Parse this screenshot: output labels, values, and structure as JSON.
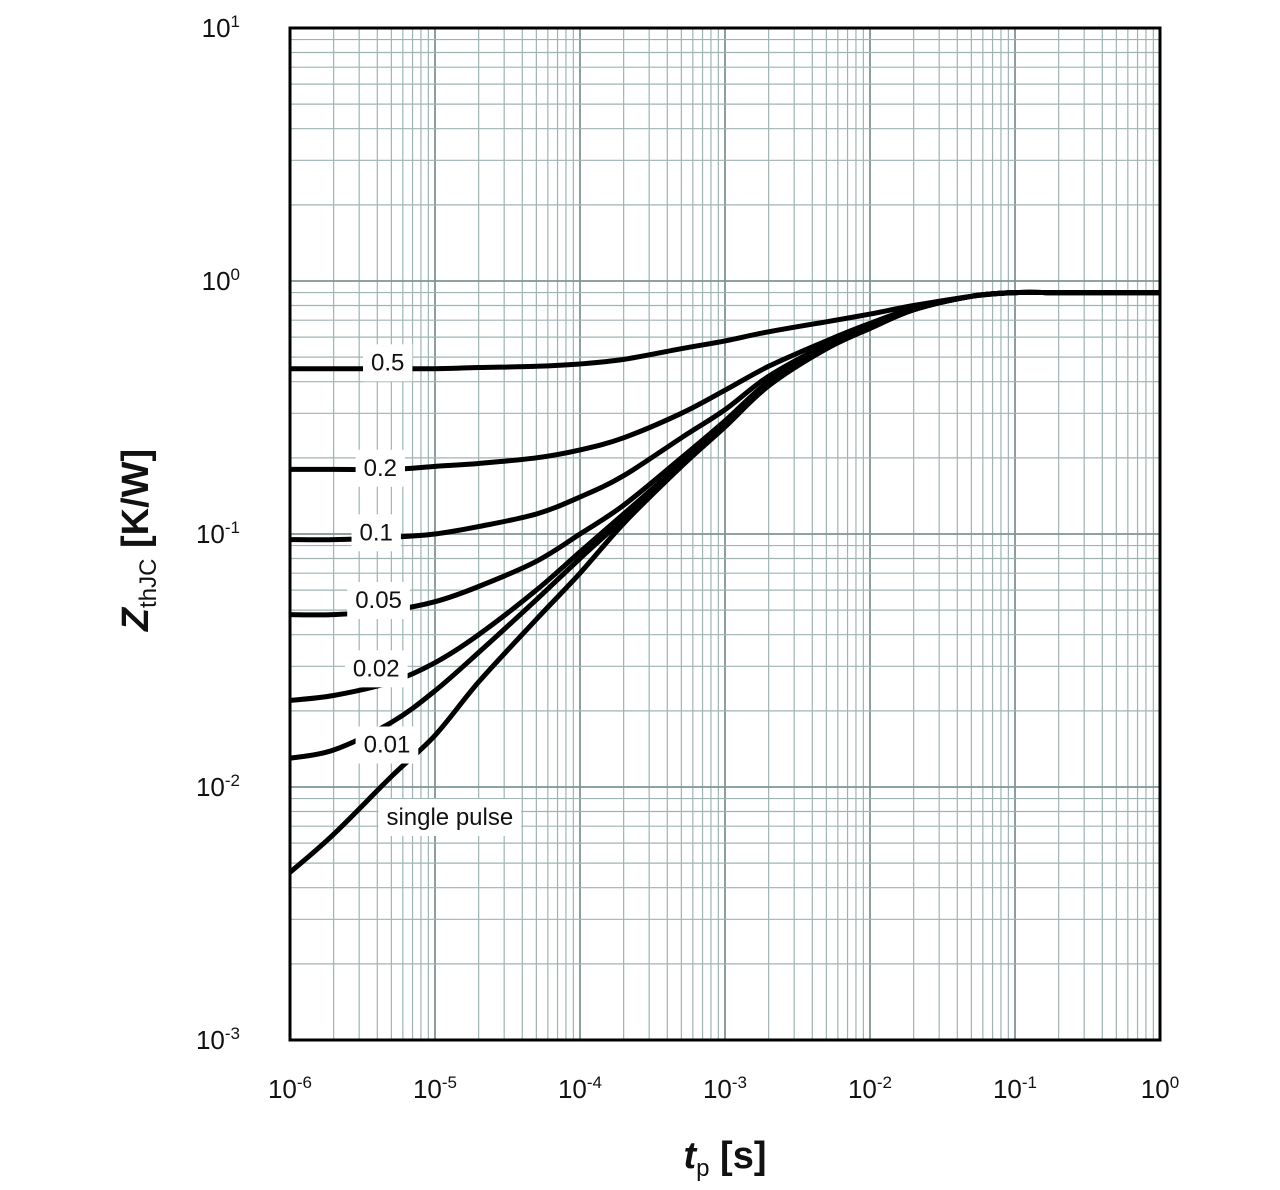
{
  "chart_data": {
    "type": "line",
    "title": "",
    "x_scale": "log",
    "y_scale": "log",
    "xlim": [
      1e-06,
      1
    ],
    "ylim": [
      0.001,
      10
    ],
    "grid": true,
    "xlabel": {
      "main": "t",
      "sub": "p",
      "unit": " [s]"
    },
    "ylabel": {
      "main": "Z",
      "sub": "thJC",
      "unit": " [K/W]"
    },
    "x_ticks": [
      {
        "value": 1e-06,
        "base": "10",
        "exp": "-6"
      },
      {
        "value": 1e-05,
        "base": "10",
        "exp": "-5"
      },
      {
        "value": 0.0001,
        "base": "10",
        "exp": "-4"
      },
      {
        "value": 0.001,
        "base": "10",
        "exp": "-3"
      },
      {
        "value": 0.01,
        "base": "10",
        "exp": "-2"
      },
      {
        "value": 0.1,
        "base": "10",
        "exp": "-1"
      },
      {
        "value": 1,
        "base": "10",
        "exp": "0"
      }
    ],
    "y_ticks": [
      {
        "value": 10,
        "base": "10",
        "exp": "1"
      },
      {
        "value": 1,
        "base": "10",
        "exp": "0"
      },
      {
        "value": 0.1,
        "base": "10",
        "exp": "-1"
      },
      {
        "value": 0.01,
        "base": "10",
        "exp": "-2"
      },
      {
        "value": 0.001,
        "base": "10",
        "exp": "-3"
      }
    ],
    "x": [
      1e-06,
      2e-06,
      5e-06,
      1e-05,
      2e-05,
      5e-05,
      0.0001,
      0.0002,
      0.0005,
      0.001,
      0.002,
      0.005,
      0.01,
      0.02,
      0.05,
      0.1,
      0.2,
      0.5,
      1
    ],
    "series": [
      {
        "name": "0.5",
        "label_x": 1.8e-06,
        "label_y": 0.47,
        "values": [
          0.45,
          0.45,
          0.45,
          0.45,
          0.455,
          0.46,
          0.47,
          0.49,
          0.54,
          0.58,
          0.63,
          0.69,
          0.74,
          0.8,
          0.87,
          0.9,
          0.9,
          0.9,
          0.9
        ]
      },
      {
        "name": "0.2",
        "label_x": 1.6e-06,
        "label_y": 0.18,
        "values": [
          0.18,
          0.18,
          0.18,
          0.185,
          0.19,
          0.2,
          0.215,
          0.24,
          0.3,
          0.37,
          0.46,
          0.58,
          0.68,
          0.78,
          0.87,
          0.9,
          0.9,
          0.9,
          0.9
        ]
      },
      {
        "name": "0.1",
        "label_x": 1.5e-06,
        "label_y": 0.1,
        "values": [
          0.095,
          0.095,
          0.097,
          0.1,
          0.107,
          0.12,
          0.14,
          0.17,
          0.24,
          0.31,
          0.42,
          0.56,
          0.66,
          0.77,
          0.87,
          0.9,
          0.9,
          0.9,
          0.9
        ]
      },
      {
        "name": "0.05",
        "label_x": 1.4e-06,
        "label_y": 0.054,
        "values": [
          0.048,
          0.048,
          0.05,
          0.054,
          0.062,
          0.078,
          0.1,
          0.13,
          0.2,
          0.28,
          0.4,
          0.55,
          0.65,
          0.77,
          0.87,
          0.9,
          0.9,
          0.9,
          0.9
        ]
      },
      {
        "name": "0.02",
        "label_x": 1.35e-06,
        "label_y": 0.029,
        "values": [
          0.022,
          0.023,
          0.026,
          0.031,
          0.04,
          0.06,
          0.085,
          0.12,
          0.19,
          0.27,
          0.39,
          0.54,
          0.65,
          0.77,
          0.87,
          0.9,
          0.9,
          0.9,
          0.9
        ]
      },
      {
        "name": "0.01",
        "label_x": 1.6e-06,
        "label_y": 0.0145,
        "values": [
          0.013,
          0.014,
          0.018,
          0.024,
          0.034,
          0.055,
          0.08,
          0.115,
          0.19,
          0.27,
          0.39,
          0.54,
          0.65,
          0.77,
          0.87,
          0.9,
          0.9,
          0.9,
          0.9
        ]
      },
      {
        "name": "single pulse",
        "label_x": 2.3e-06,
        "label_y": 0.0075,
        "values": [
          0.0046,
          0.0065,
          0.011,
          0.016,
          0.026,
          0.046,
          0.07,
          0.11,
          0.185,
          0.265,
          0.385,
          0.54,
          0.65,
          0.77,
          0.87,
          0.9,
          0.9,
          0.9,
          0.9
        ]
      }
    ]
  }
}
